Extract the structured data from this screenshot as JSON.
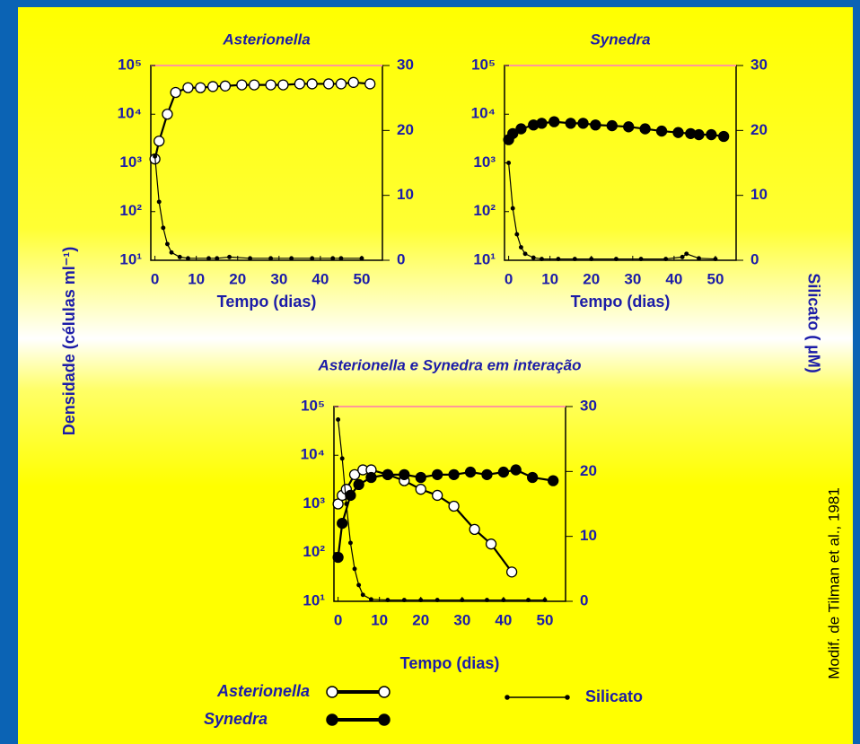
{
  "ylabel": "Densidade (células ml⁻¹)",
  "y2label": "Silicato ( µM)",
  "source": "Modif. de Tilman et al., 1981",
  "chart_data": [
    {
      "type": "line",
      "title": "Asterionella",
      "xlabel": "Tempo (dias)",
      "log_y": true,
      "top_border_color": "#ff9999",
      "xlim": [
        -1,
        55
      ],
      "xticks": [
        0,
        10,
        20,
        30,
        40,
        50
      ],
      "ylim": [
        10,
        100000
      ],
      "yticks": [
        {
          "value": 10,
          "label": "10¹"
        },
        {
          "value": 100,
          "label": "10²"
        },
        {
          "value": 1000,
          "label": "10³"
        },
        {
          "value": 10000,
          "label": "10⁴"
        },
        {
          "value": 100000,
          "label": "10⁵"
        }
      ],
      "y2lim": [
        0,
        30
      ],
      "y2ticks": [
        0,
        10,
        20,
        30
      ],
      "series": [
        {
          "marker": "open",
          "color": "#000000",
          "x": [
            0,
            1,
            3,
            5,
            8,
            11,
            14,
            17,
            21,
            24,
            28,
            31,
            35,
            38,
            42,
            45,
            48,
            52
          ],
          "values": [
            1200,
            2800,
            10000,
            28000,
            35000,
            35000,
            37000,
            38000,
            40000,
            40000,
            40000,
            40000,
            42000,
            42000,
            42000,
            42000,
            45000,
            42000
          ]
        },
        {
          "marker": "dot",
          "axis": "y2",
          "color": "#000000",
          "x": [
            0,
            1,
            2,
            3,
            4,
            6,
            8,
            13,
            15,
            18,
            23,
            28,
            33,
            38,
            43,
            45,
            50
          ],
          "values": [
            16,
            9,
            5,
            2.5,
            1.2,
            0.5,
            0.3,
            0.3,
            0.3,
            0.5,
            0.3,
            0.3,
            0.3,
            0.3,
            0.3,
            0.3,
            0.3
          ]
        }
      ]
    },
    {
      "type": "line",
      "title": "Synedra",
      "xlabel": "Tempo (dias)",
      "log_y": true,
      "top_border_color": "#ff9999",
      "xlim": [
        -1,
        55
      ],
      "xticks": [
        0,
        10,
        20,
        30,
        40,
        50
      ],
      "ylim": [
        10,
        100000
      ],
      "yticks": [
        {
          "value": 10,
          "label": "10¹"
        },
        {
          "value": 100,
          "label": "10²"
        },
        {
          "value": 1000,
          "label": "10³"
        },
        {
          "value": 10000,
          "label": "10⁴"
        },
        {
          "value": 100000,
          "label": "10⁵"
        }
      ],
      "y2lim": [
        0,
        30
      ],
      "y2ticks": [
        0,
        10,
        20,
        30
      ],
      "series": [
        {
          "marker": "filled",
          "color": "#000000",
          "x": [
            0,
            1,
            3,
            6,
            8,
            11,
            15,
            18,
            21,
            25,
            29,
            33,
            37,
            41,
            44,
            46,
            49,
            52
          ],
          "values": [
            3000,
            4000,
            5000,
            6000,
            6500,
            7000,
            6500,
            6500,
            6000,
            5800,
            5500,
            5000,
            4500,
            4200,
            4000,
            3800,
            3800,
            3500
          ]
        },
        {
          "marker": "dot",
          "axis": "y2",
          "color": "#000000",
          "x": [
            0,
            1,
            2,
            3,
            4,
            6,
            8,
            12,
            16,
            20,
            26,
            32,
            38,
            42,
            43,
            46,
            50
          ],
          "values": [
            15,
            8,
            4,
            2,
            1,
            0.4,
            0.2,
            0.2,
            0.2,
            0.2,
            0.2,
            0.2,
            0.2,
            0.5,
            1,
            0.3,
            0.2
          ]
        }
      ]
    },
    {
      "type": "line",
      "title": "Asterionella e Synedra em interação",
      "xlabel": "Tempo (dias)",
      "log_y": true,
      "top_border_color": "#ff9999",
      "xlim": [
        -1,
        55
      ],
      "xticks": [
        0,
        10,
        20,
        30,
        40,
        50
      ],
      "ylim": [
        10,
        100000
      ],
      "yticks": [
        {
          "value": 10,
          "label": "10¹"
        },
        {
          "value": 100,
          "label": "10²"
        },
        {
          "value": 1000,
          "label": "10³"
        },
        {
          "value": 10000,
          "label": "10⁴"
        },
        {
          "value": 100000,
          "label": "10⁵"
        }
      ],
      "y2lim": [
        0,
        30
      ],
      "y2ticks": [
        0,
        10,
        20,
        30
      ],
      "series": [
        {
          "name": "Asterionella",
          "marker": "open",
          "color": "#000000",
          "x": [
            0,
            1,
            2,
            4,
            6,
            8,
            12,
            16,
            20,
            24,
            28,
            33,
            37,
            42
          ],
          "values": [
            1000,
            1500,
            2000,
            4000,
            5000,
            5000,
            4000,
            3000,
            2000,
            1500,
            900,
            300,
            150,
            40
          ]
        },
        {
          "name": "Synedra",
          "marker": "filled",
          "color": "#000000",
          "x": [
            0,
            1,
            3,
            5,
            8,
            12,
            16,
            20,
            24,
            28,
            32,
            36,
            40,
            43,
            47,
            52
          ],
          "values": [
            80,
            400,
            1500,
            2500,
            3500,
            4000,
            4000,
            3500,
            4000,
            4000,
            4500,
            4000,
            4500,
            5000,
            3500,
            3000
          ]
        },
        {
          "name": "Silicato",
          "marker": "dot",
          "axis": "y2",
          "color": "#000000",
          "x": [
            0,
            1,
            2,
            3,
            4,
            5,
            6,
            8,
            12,
            16,
            20,
            24,
            30,
            36,
            40,
            46,
            50
          ],
          "values": [
            28,
            22,
            15,
            9,
            5,
            2.5,
            1,
            0.3,
            0.2,
            0.2,
            0.2,
            0.2,
            0.2,
            0.2,
            0.2,
            0.2,
            0.2
          ]
        }
      ]
    }
  ]
}
